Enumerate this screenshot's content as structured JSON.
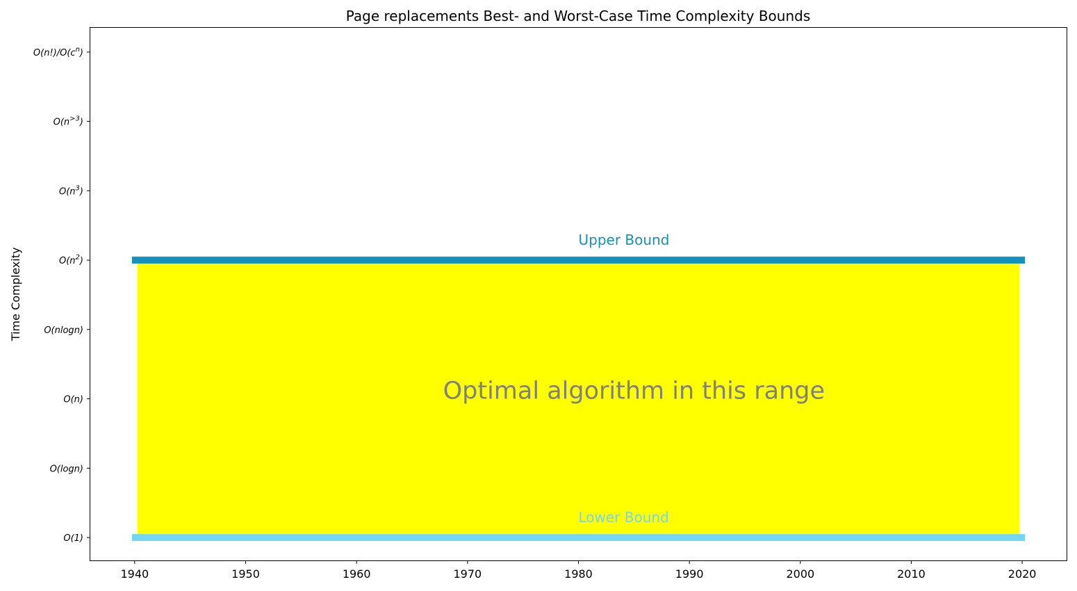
{
  "chart_data": {
    "type": "area",
    "title": "Page replacements Best- and Worst-Case Time Complexity Bounds",
    "xlabel": "",
    "ylabel": "Time Complexity",
    "xlim": [
      1936,
      2024
    ],
    "ylim": [
      -0.33,
      7.35
    ],
    "grid": false,
    "x_ticks": [
      1940,
      1950,
      1960,
      1970,
      1980,
      1990,
      2000,
      2010,
      2020
    ],
    "y_ticks": [
      {
        "value": 0,
        "label": "O(1)",
        "base": "O(1)",
        "sup": ""
      },
      {
        "value": 1,
        "label": "O(logn)",
        "base": "O(logn)",
        "sup": ""
      },
      {
        "value": 2,
        "label": "O(n)",
        "base": "O(n)",
        "sup": ""
      },
      {
        "value": 3,
        "label": "O(nlogn)",
        "base": "O(nlogn)",
        "sup": ""
      },
      {
        "value": 4,
        "label": "O(n^2)",
        "base": "O(n",
        "sup": "2",
        "tail": ")"
      },
      {
        "value": 5,
        "label": "O(n^3)",
        "base": "O(n",
        "sup": "3",
        "tail": ")"
      },
      {
        "value": 6,
        "label": "O(n^>3)",
        "base": "O(n",
        "sup": ">3",
        "tail": ")"
      },
      {
        "value": 7,
        "label": "O(n!)/O(c^n)",
        "base": "O(n!)/O(c",
        "sup": "n",
        "tail": ")"
      }
    ],
    "series": [
      {
        "name": "Upper Bound",
        "x": [
          1940,
          2020
        ],
        "values": [
          4,
          4
        ],
        "color": "#1591BE"
      },
      {
        "name": "Lower Bound",
        "x": [
          1940,
          2020
        ],
        "values": [
          0,
          0
        ],
        "color": "#74D6F3"
      }
    ],
    "fill": {
      "x": [
        1940,
        2020
      ],
      "from": 0,
      "to": 4,
      "color": "#FFFF00"
    },
    "annotations": [
      {
        "text": "Upper Bound",
        "x": 1980,
        "y": 4.28,
        "color": "#1591BE"
      },
      {
        "text": "Lower Bound",
        "x": 1980,
        "y": 0.28,
        "color": "#74D6F3"
      },
      {
        "text": "Optimal algorithm in this range",
        "x": 1985,
        "y": 2.12,
        "color": "#808080"
      }
    ]
  }
}
